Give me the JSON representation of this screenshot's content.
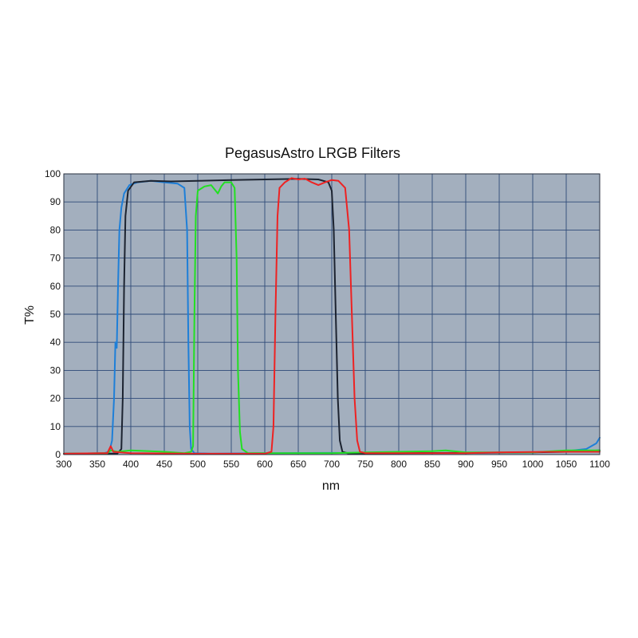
{
  "chart_data": {
    "type": "line",
    "title": "PegasusAstro LRGB Filters",
    "xlabel": "nm",
    "ylabel": "T%",
    "xlim": [
      300,
      1100
    ],
    "ylim": [
      0,
      100
    ],
    "x_ticks": [
      300,
      350,
      400,
      450,
      500,
      550,
      600,
      650,
      700,
      750,
      800,
      850,
      900,
      950,
      1000,
      1050,
      1100
    ],
    "y_ticks": [
      0,
      10,
      20,
      30,
      40,
      50,
      60,
      70,
      80,
      90,
      100
    ],
    "grid": true,
    "plot_background": "#a3afbe",
    "grid_color": "#2e4a78",
    "series": [
      {
        "color": "#1e7fd8",
        "points": [
          [
            300,
            0.3
          ],
          [
            360,
            0.5
          ],
          [
            368,
            1
          ],
          [
            372,
            5
          ],
          [
            375,
            20
          ],
          [
            377,
            40
          ],
          [
            379,
            38
          ],
          [
            381,
            60
          ],
          [
            383,
            80
          ],
          [
            386,
            88
          ],
          [
            390,
            93
          ],
          [
            398,
            96
          ],
          [
            410,
            97
          ],
          [
            430,
            97.5
          ],
          [
            450,
            97
          ],
          [
            470,
            96.5
          ],
          [
            480,
            95
          ],
          [
            484,
            80
          ],
          [
            486,
            40
          ],
          [
            488,
            10
          ],
          [
            490,
            2
          ],
          [
            495,
            0.5
          ],
          [
            520,
            0.3
          ],
          [
            600,
            0.5
          ],
          [
            700,
            0.6
          ],
          [
            800,
            0.5
          ],
          [
            900,
            0.6
          ],
          [
            1000,
            0.8
          ],
          [
            1050,
            1.2
          ],
          [
            1080,
            2
          ],
          [
            1095,
            4
          ],
          [
            1100,
            6
          ]
        ]
      },
      {
        "color": "#1c2330",
        "points": [
          [
            300,
            0.3
          ],
          [
            380,
            0.4
          ],
          [
            386,
            2
          ],
          [
            388,
            20
          ],
          [
            390,
            60
          ],
          [
            392,
            85
          ],
          [
            396,
            94
          ],
          [
            405,
            97
          ],
          [
            430,
            97.5
          ],
          [
            460,
            97.3
          ],
          [
            500,
            97.5
          ],
          [
            550,
            97.8
          ],
          [
            600,
            98
          ],
          [
            650,
            98.2
          ],
          [
            680,
            98
          ],
          [
            695,
            97
          ],
          [
            700,
            94
          ],
          [
            703,
            80
          ],
          [
            706,
            50
          ],
          [
            709,
            20
          ],
          [
            712,
            5
          ],
          [
            716,
            1
          ],
          [
            725,
            0.4
          ],
          [
            800,
            0.5
          ],
          [
            900,
            0.6
          ],
          [
            1000,
            0.8
          ],
          [
            1050,
            1
          ],
          [
            1100,
            1.5
          ]
        ]
      },
      {
        "color": "#22e022",
        "points": [
          [
            300,
            0.3
          ],
          [
            365,
            0.5
          ],
          [
            370,
            1.5
          ],
          [
            380,
            1
          ],
          [
            400,
            1.5
          ],
          [
            450,
            1
          ],
          [
            480,
            0.5
          ],
          [
            490,
            1
          ],
          [
            493,
            3
          ],
          [
            495,
            50
          ],
          [
            497,
            85
          ],
          [
            500,
            94
          ],
          [
            510,
            95.5
          ],
          [
            520,
            96
          ],
          [
            530,
            93
          ],
          [
            535,
            95.5
          ],
          [
            540,
            97
          ],
          [
            550,
            97
          ],
          [
            555,
            95
          ],
          [
            558,
            70
          ],
          [
            560,
            30
          ],
          [
            563,
            8
          ],
          [
            566,
            2
          ],
          [
            575,
            0.5
          ],
          [
            600,
            0.5
          ],
          [
            700,
            0.5
          ],
          [
            750,
            0.8
          ],
          [
            800,
            1
          ],
          [
            850,
            1.2
          ],
          [
            870,
            1.5
          ],
          [
            900,
            0.8
          ],
          [
            1000,
            0.8
          ],
          [
            1050,
            1.5
          ],
          [
            1100,
            1.5
          ]
        ]
      },
      {
        "color": "#ee2222",
        "points": [
          [
            300,
            0.3
          ],
          [
            365,
            0.5
          ],
          [
            370,
            3
          ],
          [
            374,
            1
          ],
          [
            400,
            0.5
          ],
          [
            500,
            0.3
          ],
          [
            600,
            0.3
          ],
          [
            610,
            1
          ],
          [
            613,
            10
          ],
          [
            616,
            50
          ],
          [
            619,
            85
          ],
          [
            622,
            95
          ],
          [
            630,
            97
          ],
          [
            640,
            98.5
          ],
          [
            650,
            98
          ],
          [
            660,
            98.3
          ],
          [
            670,
            97
          ],
          [
            680,
            96
          ],
          [
            690,
            97
          ],
          [
            700,
            97.8
          ],
          [
            710,
            97.5
          ],
          [
            720,
            95
          ],
          [
            726,
            80
          ],
          [
            730,
            50
          ],
          [
            734,
            20
          ],
          [
            738,
            5
          ],
          [
            742,
            1
          ],
          [
            750,
            0.5
          ],
          [
            800,
            0.5
          ],
          [
            900,
            0.5
          ],
          [
            950,
            0.8
          ],
          [
            1000,
            0.9
          ],
          [
            1050,
            1
          ],
          [
            1100,
            1
          ]
        ]
      }
    ]
  }
}
